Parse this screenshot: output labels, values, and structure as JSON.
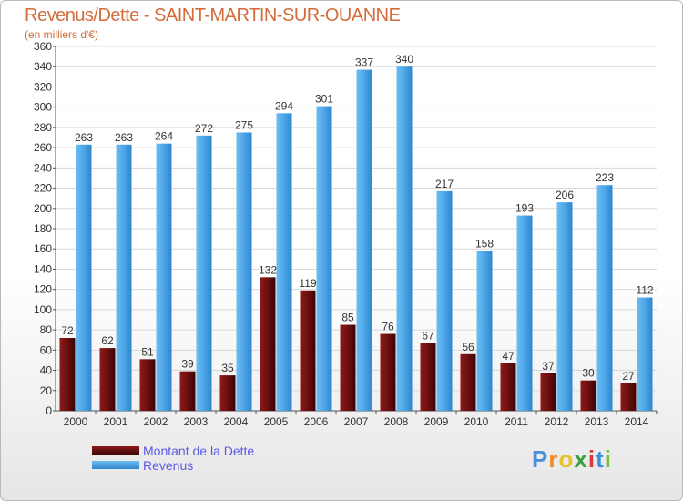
{
  "chart_data": {
    "type": "bar",
    "title": "Revenus/Dette - SAINT-MARTIN-SUR-OUANNE",
    "subtitle": "(en milliers d'€)",
    "categories": [
      "2000",
      "2001",
      "2002",
      "2003",
      "2004",
      "2005",
      "2006",
      "2007",
      "2008",
      "2009",
      "2010",
      "2011",
      "2012",
      "2013",
      "2014"
    ],
    "series": [
      {
        "name": "Montant de la Dette",
        "values": [
          72,
          62,
          51,
          39,
          35,
          132,
          119,
          85,
          76,
          67,
          56,
          47,
          37,
          30,
          27
        ]
      },
      {
        "name": "Revenus",
        "values": [
          263,
          263,
          264,
          272,
          275,
          294,
          301,
          337,
          340,
          217,
          158,
          193,
          206,
          223,
          112
        ]
      }
    ],
    "ylim": [
      0,
      360
    ],
    "yticks": [
      0,
      20,
      40,
      60,
      80,
      100,
      120,
      140,
      160,
      180,
      200,
      220,
      240,
      260,
      280,
      300,
      320,
      340,
      360
    ],
    "grid": true,
    "legend_placement": "bottom-left"
  },
  "colors": {
    "dette": "#6b0f0f",
    "revenus": "#4da6e8",
    "grid": "#d9d9d9",
    "title": "#d36b3a",
    "legend_text": "#5a5ae6"
  },
  "logo": {
    "letters": [
      "P",
      "r",
      "o",
      "x",
      "i",
      "t",
      "i"
    ],
    "colors": [
      "#4a90d9",
      "#f08a24",
      "#e8c32a",
      "#3aa13a",
      "#d93a3a",
      "#3a8fd9",
      "#7bc043"
    ]
  }
}
